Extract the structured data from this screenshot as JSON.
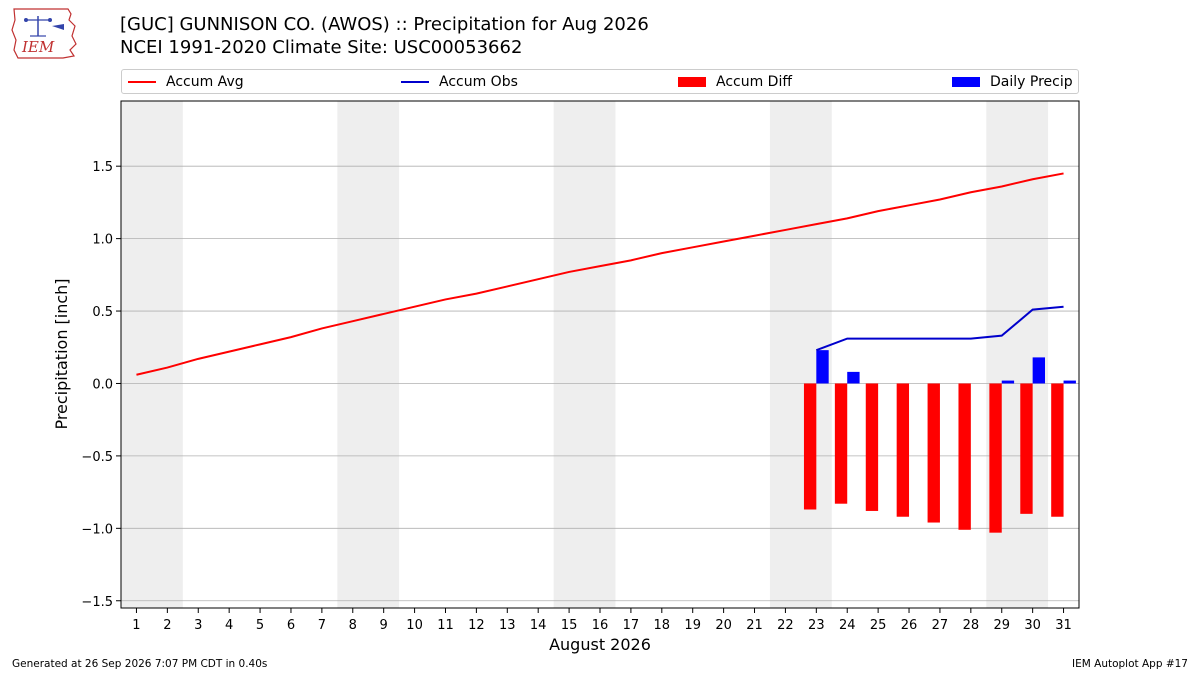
{
  "header": {
    "title_line1": "[GUC] GUNNISON CO. (AWOS) :: Precipitation for Aug 2026",
    "title_line2": "NCEI 1991-2020 Climate Site: USC00053662",
    "logo_text": "IEM"
  },
  "footer": {
    "generated": "Generated at 26 Sep 2026 7:07 PM CDT in 0.40s",
    "app": "IEM Autoplot App #17"
  },
  "colors": {
    "accum_avg": "#ff0000",
    "accum_obs": "#0000cc",
    "accum_diff": "#ff0000",
    "daily_precip": "#0000ff",
    "weekend_shade": "#eeeeee",
    "grid": "#b0b0b0"
  },
  "legend": {
    "accum_avg": "Accum Avg",
    "accum_obs": "Accum Obs",
    "accum_diff": "Accum Diff",
    "daily_precip": "Daily Precip"
  },
  "chart_data": {
    "type": "bar",
    "xlabel": "August 2026",
    "ylabel": "Precipitation [inch]",
    "xlim": [
      0.5,
      31.5
    ],
    "ylim": [
      -1.55,
      1.95
    ],
    "yticks": [
      -1.5,
      -1.0,
      -0.5,
      0.0,
      0.5,
      1.0,
      1.5
    ],
    "ytick_labels": [
      "−1.5",
      "−1.0",
      "−0.5",
      "0.0",
      "0.5",
      "1.0",
      "1.5"
    ],
    "days": [
      1,
      2,
      3,
      4,
      5,
      6,
      7,
      8,
      9,
      10,
      11,
      12,
      13,
      14,
      15,
      16,
      17,
      18,
      19,
      20,
      21,
      22,
      23,
      24,
      25,
      26,
      27,
      28,
      29,
      30,
      31
    ],
    "grid": "horizontal",
    "legend_position": "top",
    "weekend_shading": [
      [
        1,
        2
      ],
      [
        8,
        9
      ],
      [
        15,
        16
      ],
      [
        22,
        23
      ],
      [
        29,
        30
      ]
    ],
    "series": [
      {
        "name": "Accum Avg",
        "kind": "line",
        "x": [
          1,
          2,
          3,
          4,
          5,
          6,
          7,
          8,
          9,
          10,
          11,
          12,
          13,
          14,
          15,
          16,
          17,
          18,
          19,
          20,
          21,
          22,
          23,
          24,
          25,
          26,
          27,
          28,
          29,
          30,
          31
        ],
        "values": [
          0.06,
          0.11,
          0.17,
          0.22,
          0.27,
          0.32,
          0.38,
          0.43,
          0.48,
          0.53,
          0.58,
          0.62,
          0.67,
          0.72,
          0.77,
          0.81,
          0.85,
          0.9,
          0.94,
          0.98,
          1.02,
          1.06,
          1.1,
          1.14,
          1.19,
          1.23,
          1.27,
          1.32,
          1.36,
          1.41,
          1.45
        ]
      },
      {
        "name": "Accum Obs",
        "kind": "line",
        "x": [
          23,
          24,
          25,
          26,
          27,
          28,
          29,
          30,
          31
        ],
        "values": [
          0.23,
          0.31,
          0.31,
          0.31,
          0.31,
          0.31,
          0.33,
          0.51,
          0.53
        ]
      },
      {
        "name": "Accum Diff",
        "kind": "bar",
        "x": [
          23,
          24,
          25,
          26,
          27,
          28,
          29,
          30,
          31
        ],
        "values": [
          -0.87,
          -0.83,
          -0.88,
          -0.92,
          -0.96,
          -1.01,
          -1.03,
          -0.9,
          -0.92
        ]
      },
      {
        "name": "Daily Precip",
        "kind": "bar",
        "x": [
          23,
          24,
          25,
          26,
          27,
          28,
          29,
          30,
          31
        ],
        "values": [
          0.23,
          0.08,
          0.0,
          0.0,
          0.0,
          0.0,
          0.02,
          0.18,
          0.02
        ]
      }
    ]
  }
}
